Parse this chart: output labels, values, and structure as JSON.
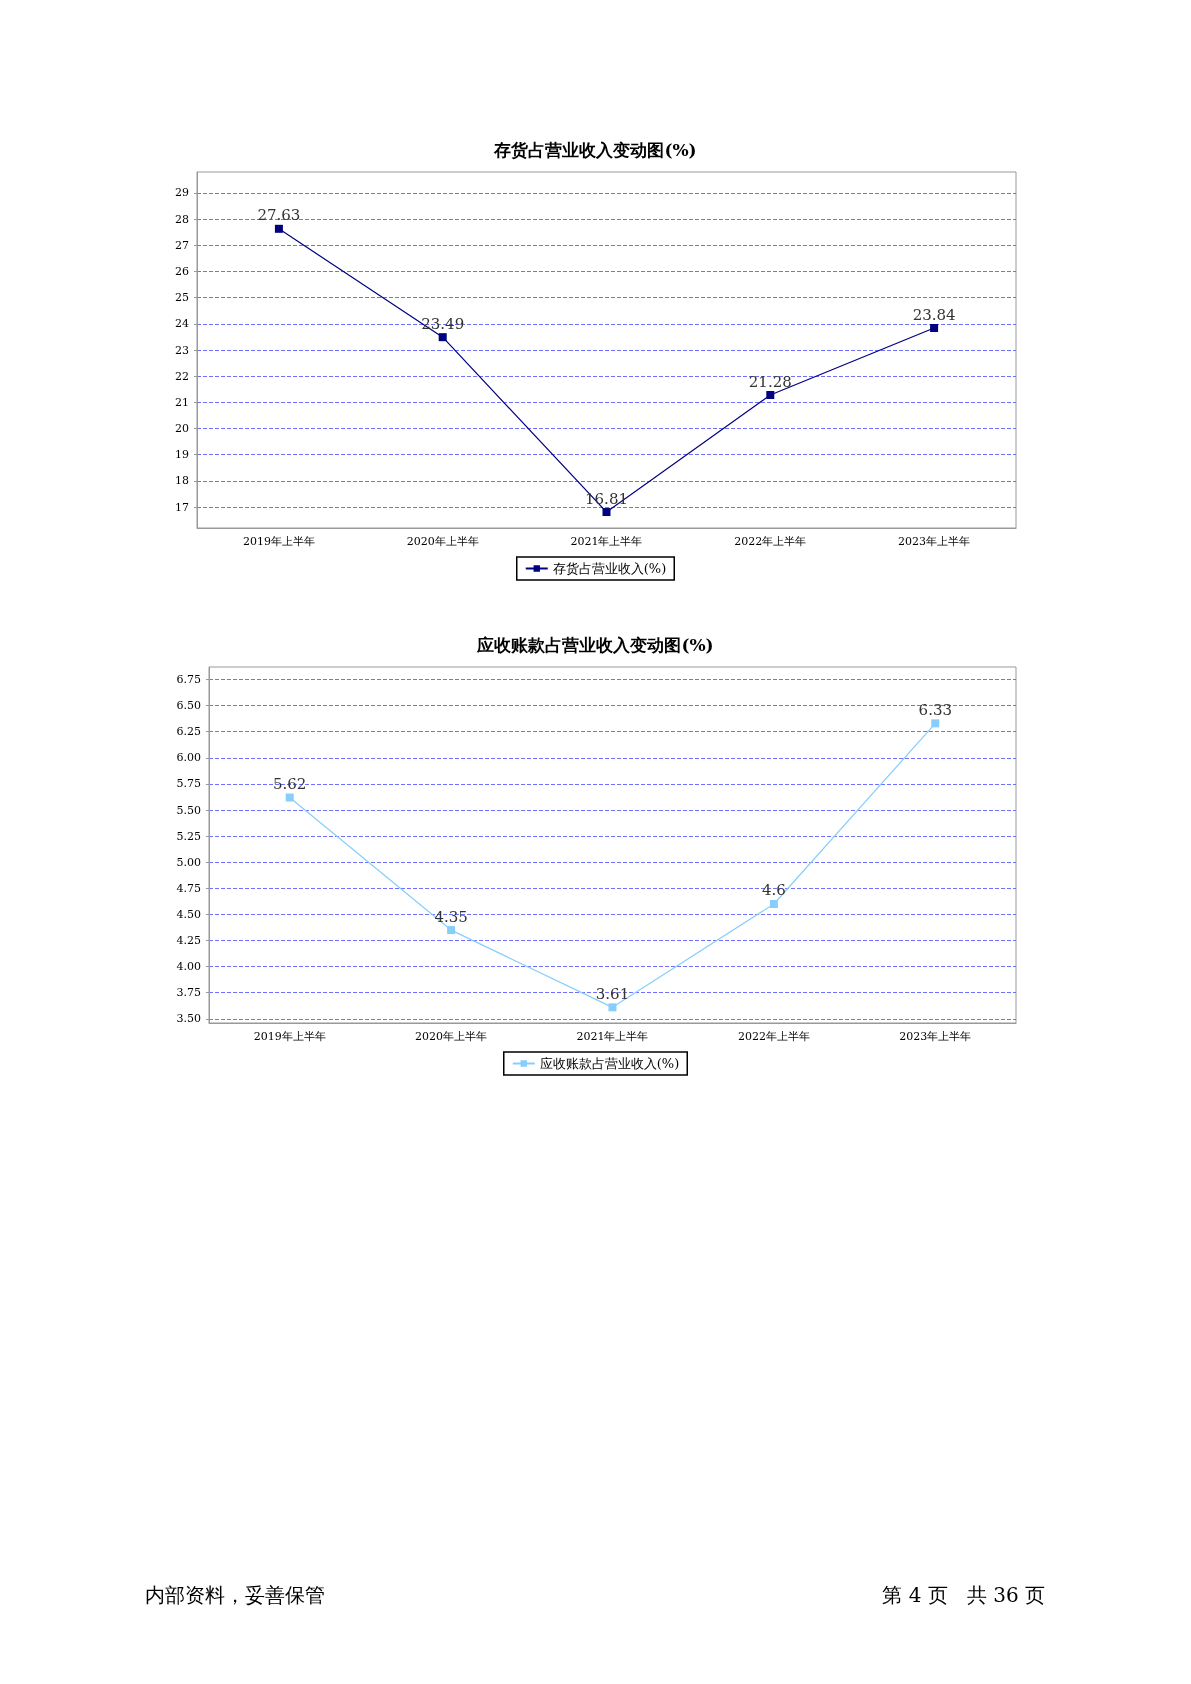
{
  "chart_data": [
    {
      "type": "line",
      "title": "存货占营业收入变动图(%)",
      "categories": [
        "2019年上半年",
        "2020年上半年",
        "2021年上半年",
        "2022年上半年",
        "2023年上半年"
      ],
      "series": [
        {
          "name": "存货占营业收入(%)",
          "color": "#000080",
          "values": [
            27.63,
            23.49,
            16.81,
            21.28,
            23.84
          ]
        }
      ],
      "ylim": [
        16.2,
        29.8
      ],
      "yticks": [
        17,
        18,
        19,
        20,
        21,
        22,
        23,
        24,
        25,
        26,
        27,
        28,
        29
      ],
      "grid": "y",
      "legend": "bottom",
      "marker": "square",
      "line_style": "solid",
      "data_labels": true
    },
    {
      "type": "line",
      "title": "应收账款占营业收入变动图(%)",
      "categories": [
        "2019年上半年",
        "2020年上半年",
        "2021年上半年",
        "2022年上半年",
        "2023年上半年"
      ],
      "series": [
        {
          "name": "应收账款占营业收入(%)",
          "color": "#87cefa",
          "values": [
            5.62,
            4.35,
            3.61,
            4.6,
            6.33
          ]
        }
      ],
      "ylim": [
        3.46,
        6.87
      ],
      "yticks": [
        {
          "value": 3.5,
          "label": "3.50"
        },
        {
          "value": 3.75,
          "label": "3.75"
        },
        {
          "value": 4,
          "label": "4.00"
        },
        {
          "value": 4.25,
          "label": "4.25"
        },
        {
          "value": 4.5,
          "label": "4.50"
        },
        {
          "value": 4.75,
          "label": "4.75"
        },
        {
          "value": 5,
          "label": "5.00"
        },
        {
          "value": 5.25,
          "label": "5.25"
        },
        {
          "value": 5.5,
          "label": "5.50"
        },
        {
          "value": 5.75,
          "label": "5.75"
        },
        {
          "value": 6,
          "label": "6.00"
        },
        {
          "value": 6.25,
          "label": "6.25"
        },
        {
          "value": 6.5,
          "label": "6.50"
        },
        {
          "value": 6.75,
          "label": "6.75"
        }
      ],
      "grid": "y",
      "legend": "bottom",
      "marker": "square",
      "line_style": "solid",
      "data_labels": true,
      "annotations": [
        "内部资料，妥善保管",
        "第 4 页   共 36 页"
      ]
    }
  ]
}
